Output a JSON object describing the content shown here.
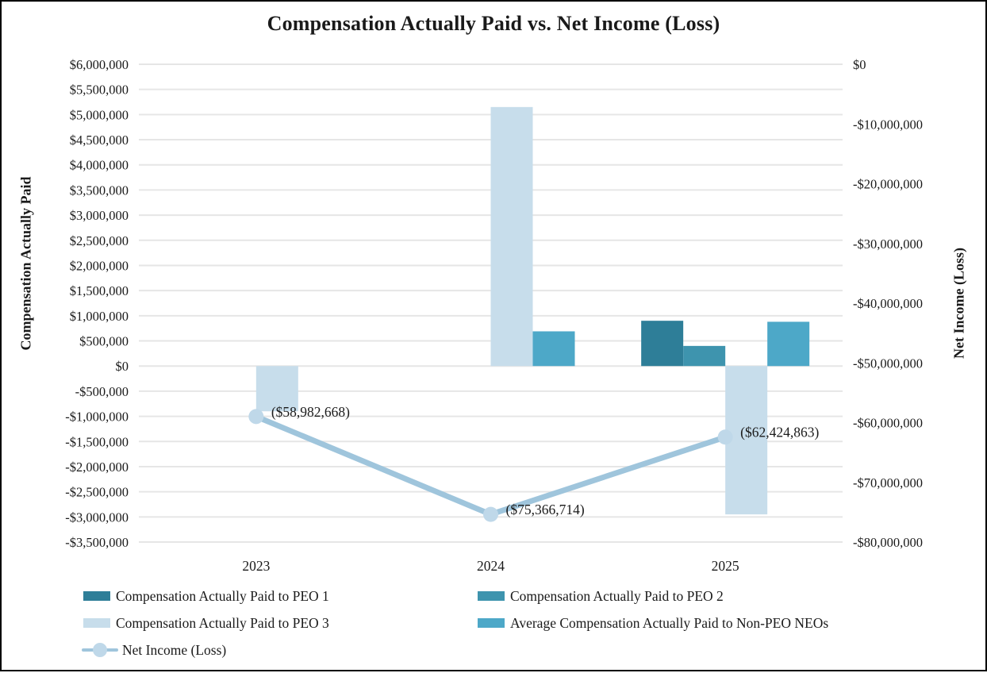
{
  "chart_data": {
    "type": "combo",
    "subtypes": [
      "bar",
      "line"
    ],
    "title": "Compensation Actually Paid vs. Net Income (Loss)",
    "categories": [
      "2023",
      "2024",
      "2025"
    ],
    "series": [
      {
        "name": "Compensation Actually Paid to PEO 1",
        "type": "bar",
        "axis": "left",
        "color": "#2E7E98",
        "values": [
          null,
          null,
          900000
        ]
      },
      {
        "name": "Compensation Actually Paid to PEO 2",
        "type": "bar",
        "axis": "left",
        "color": "#3E94AE",
        "values": [
          null,
          null,
          400000
        ]
      },
      {
        "name": "Compensation Actually Paid to PEO 3",
        "type": "bar",
        "axis": "left",
        "color": "#C7DDEB",
        "values": [
          -900000,
          5150000,
          -2950000
        ]
      },
      {
        "name": "Average Compensation Actually Paid to Non-PEO NEOs",
        "type": "bar",
        "axis": "left",
        "color": "#4DA8C8",
        "values": [
          null,
          690000,
          880000
        ]
      },
      {
        "name": "Net Income (Loss)",
        "type": "line",
        "axis": "right",
        "color": "#9FC5DC",
        "marker_color": "#BFD8E9",
        "values": [
          -58982668,
          -75366714,
          -62424863
        ],
        "data_labels": [
          "($58,982,668)",
          "($75,366,714)",
          "($62,424,863)"
        ]
      }
    ],
    "left_axis": {
      "title": "Compensation Actually Paid",
      "min": -3500000,
      "max": 6000000,
      "step": 500000,
      "tick_format": "dollar-comma"
    },
    "right_axis": {
      "title": "Net Income (Loss)",
      "min": -80000000,
      "max": 0,
      "step": 10000000,
      "tick_format": "dollar-comma"
    },
    "grid": true,
    "gridline_color": "#E6E6E6",
    "text_color": "#1a1a1a",
    "legend_position": "bottom"
  }
}
